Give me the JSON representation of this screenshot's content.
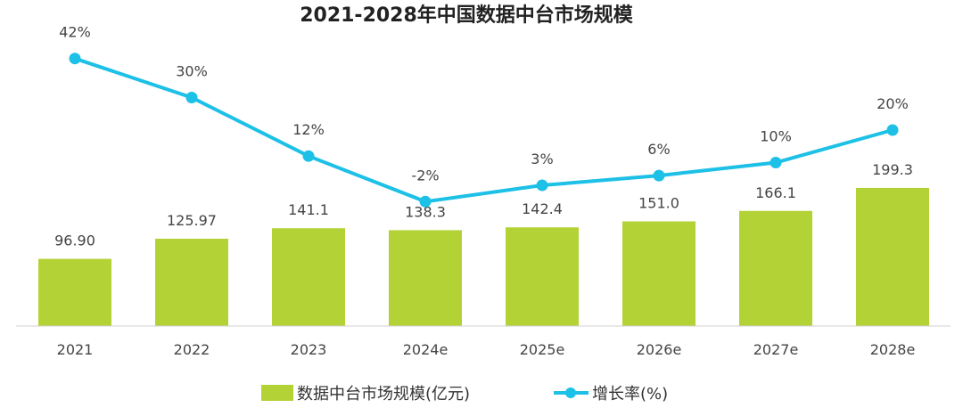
{
  "chart_data": {
    "type": "bar+line",
    "title": "2021-2028年中国数据中台市场规模",
    "categories": [
      "2021",
      "2022",
      "2023",
      "2024e",
      "2025e",
      "2026e",
      "2027e",
      "2028e"
    ],
    "series": [
      {
        "name": "数据中台市场规模(亿元)",
        "type": "bar",
        "color": "#b3d235",
        "values": [
          96.9,
          125.97,
          141.1,
          138.3,
          142.4,
          151.0,
          166.1,
          199.3
        ],
        "labels": [
          "96.90",
          "125.97",
          "141.1",
          "138.3",
          "142.4",
          "151.0",
          "166.1",
          "199.3"
        ]
      },
      {
        "name": "增长率(%)",
        "type": "line",
        "color": "#1dc0e6",
        "values": [
          42,
          30,
          12,
          -2,
          3,
          6,
          10,
          20
        ],
        "labels": [
          "42%",
          "30%",
          "12%",
          "-2%",
          "3%",
          "6%",
          "10%",
          "20%"
        ]
      }
    ],
    "legend": "bottom-center",
    "grid": false
  }
}
